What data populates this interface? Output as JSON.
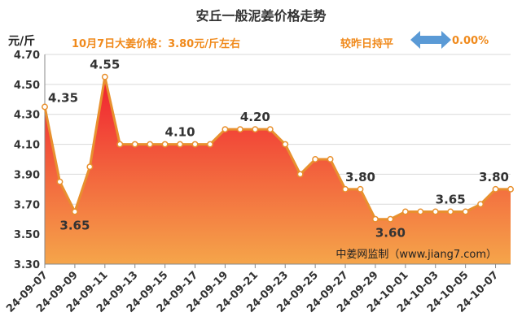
{
  "header": {
    "title": "安丘一般泥姜价格走势",
    "unit": "元/斤",
    "price_text": "10月7日大姜价格：3.80元/斤左右",
    "compare_text": "较昨日持平",
    "change_text": "0.00%",
    "arrow_icon": "double-arrow-icon",
    "accent_color": "#f08a1c",
    "arrow_color": "#5a9ad6"
  },
  "chart_data": {
    "type": "area",
    "title": "安丘一般泥姜价格走势",
    "ylabel": "元/斤",
    "xlabel": "",
    "ylim": [
      3.3,
      4.7
    ],
    "yticks": [
      "3.30",
      "3.50",
      "3.70",
      "3.90",
      "4.10",
      "4.30",
      "4.50",
      "4.70"
    ],
    "xtick_labels": [
      "24-09-07",
      "24-09-09",
      "24-09-11",
      "24-09-13",
      "24-09-15",
      "24-09-17",
      "24-09-19",
      "24-09-21",
      "24-09-23",
      "24-09-25",
      "24-09-27",
      "24-09-29",
      "24-10-01",
      "24-10-03",
      "24-10-05",
      "24-10-07"
    ],
    "values": [
      4.35,
      3.85,
      3.65,
      3.95,
      4.55,
      4.1,
      4.1,
      4.1,
      4.1,
      4.1,
      4.1,
      4.1,
      4.2,
      4.2,
      4.2,
      4.2,
      4.1,
      3.9,
      4.0,
      4.0,
      3.8,
      3.8,
      3.6,
      3.6,
      3.65,
      3.65,
      3.65,
      3.65,
      3.65,
      3.7,
      3.8,
      3.8
    ],
    "data_labels": [
      {
        "index": 0,
        "text": "4.35",
        "pos": "right"
      },
      {
        "index": 2,
        "text": "3.65",
        "pos": "below"
      },
      {
        "index": 4,
        "text": "4.55",
        "pos": "above"
      },
      {
        "index": 9,
        "text": "4.10",
        "pos": "above"
      },
      {
        "index": 14,
        "text": "4.20",
        "pos": "above"
      },
      {
        "index": 21,
        "text": "3.80",
        "pos": "above"
      },
      {
        "index": 23,
        "text": "3.60",
        "pos": "below"
      },
      {
        "index": 27,
        "text": "3.65",
        "pos": "above"
      },
      {
        "index": 31,
        "text": "3.80",
        "pos": "above"
      }
    ],
    "grid": true,
    "line_color": "#e8902e",
    "fill_top_color": "#f02030",
    "fill_bottom_color": "#f5a54a",
    "watermark": "中姜网监制（www.jiang7.com）"
  }
}
